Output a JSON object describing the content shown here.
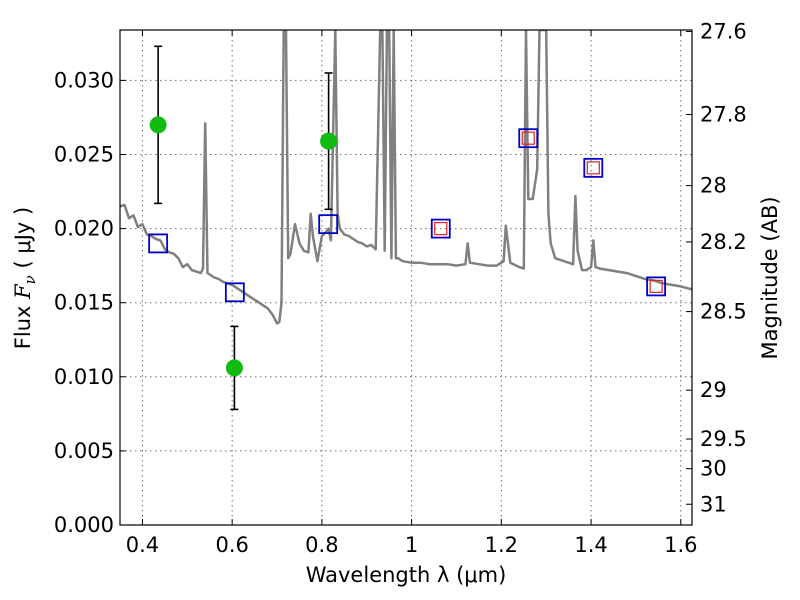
{
  "chart_data": {
    "type": "scatter",
    "xlabel": "Wavelength  λ (μm)",
    "ylabel_prefix": "Flux  ",
    "ylabel_symbol": "F",
    "ylabel_subscript": "ν",
    "ylabel_suffix": "  ( μJy )",
    "y2label": "Magnitude (AB)",
    "xlim": [
      0.35,
      1.625
    ],
    "ylim": [
      0.0,
      0.0334
    ],
    "grid": true,
    "x_ticks": [
      0.4,
      0.6,
      0.8,
      1.0,
      1.2,
      1.4,
      1.6
    ],
    "x_tick_labels": [
      "0.4",
      "0.6",
      "0.8",
      "1",
      "1.2",
      "1.4",
      "1.6"
    ],
    "y_ticks": [
      0.0,
      0.005,
      0.01,
      0.015,
      0.02,
      0.025,
      0.03
    ],
    "y_tick_labels": [
      "0.000",
      "0.005",
      "0.010",
      "0.015",
      "0.020",
      "0.025",
      "0.030"
    ],
    "y2_ticks": [
      {
        "flux": 0.0333,
        "label": "27.6"
      },
      {
        "flux": 0.0277,
        "label": "27.8"
      },
      {
        "flux": 0.0229,
        "label": "28"
      },
      {
        "flux": 0.0191,
        "label": "28.2"
      },
      {
        "flux": 0.0144,
        "label": "28.5"
      },
      {
        "flux": 0.0091,
        "label": "29"
      },
      {
        "flux": 0.0058,
        "label": "29.5"
      },
      {
        "flux": 0.0038,
        "label": "30"
      },
      {
        "flux": 0.0014,
        "label": "31"
      }
    ],
    "series": [
      {
        "kind": "line",
        "color": "#808080",
        "points": [
          [
            0.35,
            0.0215
          ],
          [
            0.36,
            0.0216
          ],
          [
            0.37,
            0.0207
          ],
          [
            0.38,
            0.0209
          ],
          [
            0.39,
            0.0201
          ],
          [
            0.4,
            0.0203
          ],
          [
            0.41,
            0.0196
          ],
          [
            0.42,
            0.0195
          ],
          [
            0.43,
            0.0193
          ],
          [
            0.44,
            0.0192
          ],
          [
            0.45,
            0.0186
          ],
          [
            0.46,
            0.0184
          ],
          [
            0.47,
            0.0183
          ],
          [
            0.48,
            0.018
          ],
          [
            0.49,
            0.0174
          ],
          [
            0.5,
            0.0176
          ],
          [
            0.51,
            0.0172
          ],
          [
            0.52,
            0.0171
          ],
          [
            0.53,
            0.017
          ],
          [
            0.535,
            0.0173
          ],
          [
            0.54,
            0.0271
          ],
          [
            0.545,
            0.017
          ],
          [
            0.55,
            0.0169
          ],
          [
            0.56,
            0.0167
          ],
          [
            0.57,
            0.0166
          ],
          [
            0.58,
            0.0164
          ],
          [
            0.59,
            0.0163
          ],
          [
            0.6,
            0.0162
          ],
          [
            0.62,
            0.0158
          ],
          [
            0.64,
            0.0154
          ],
          [
            0.66,
            0.015
          ],
          [
            0.68,
            0.0146
          ],
          [
            0.69,
            0.0142
          ],
          [
            0.7,
            0.0136
          ],
          [
            0.705,
            0.0137
          ],
          [
            0.71,
            0.015
          ],
          [
            0.715,
            0.0334
          ],
          [
            0.72,
            0.0334
          ],
          [
            0.725,
            0.018
          ],
          [
            0.73,
            0.0183
          ],
          [
            0.74,
            0.0203
          ],
          [
            0.75,
            0.019
          ],
          [
            0.76,
            0.0185
          ],
          [
            0.77,
            0.0184
          ],
          [
            0.775,
            0.021
          ],
          [
            0.78,
            0.0195
          ],
          [
            0.79,
            0.0178
          ],
          [
            0.8,
            0.0195
          ],
          [
            0.81,
            0.0198
          ],
          [
            0.815,
            0.02
          ],
          [
            0.82,
            0.0192
          ],
          [
            0.83,
            0.0334
          ],
          [
            0.835,
            0.021
          ],
          [
            0.84,
            0.02
          ],
          [
            0.85,
            0.0196
          ],
          [
            0.86,
            0.0195
          ],
          [
            0.87,
            0.0193
          ],
          [
            0.88,
            0.0191
          ],
          [
            0.89,
            0.019
          ],
          [
            0.9,
            0.0188
          ],
          [
            0.91,
            0.0189
          ],
          [
            0.92,
            0.0186
          ],
          [
            0.93,
            0.0334
          ],
          [
            0.935,
            0.0334
          ],
          [
            0.94,
            0.0185
          ],
          [
            0.945,
            0.0334
          ],
          [
            0.95,
            0.0334
          ],
          [
            0.955,
            0.018
          ],
          [
            0.96,
            0.0334
          ],
          [
            0.965,
            0.018
          ],
          [
            0.97,
            0.018
          ],
          [
            0.98,
            0.0178
          ],
          [
            1.0,
            0.0177
          ],
          [
            1.02,
            0.0177
          ],
          [
            1.04,
            0.0176
          ],
          [
            1.06,
            0.0176
          ],
          [
            1.08,
            0.0176
          ],
          [
            1.1,
            0.0175
          ],
          [
            1.12,
            0.0176
          ],
          [
            1.125,
            0.019
          ],
          [
            1.13,
            0.0177
          ],
          [
            1.15,
            0.0176
          ],
          [
            1.17,
            0.0175
          ],
          [
            1.19,
            0.0175
          ],
          [
            1.205,
            0.0178
          ],
          [
            1.21,
            0.0202
          ],
          [
            1.22,
            0.0177
          ],
          [
            1.24,
            0.0174
          ],
          [
            1.25,
            0.0173
          ],
          [
            1.255,
            0.0334
          ],
          [
            1.26,
            0.022
          ],
          [
            1.27,
            0.022
          ],
          [
            1.28,
            0.024
          ],
          [
            1.285,
            0.0334
          ],
          [
            1.29,
            0.0334
          ],
          [
            1.3,
            0.0334
          ],
          [
            1.305,
            0.021
          ],
          [
            1.31,
            0.019
          ],
          [
            1.32,
            0.018
          ],
          [
            1.34,
            0.0178
          ],
          [
            1.36,
            0.0176
          ],
          [
            1.365,
            0.0222
          ],
          [
            1.37,
            0.0185
          ],
          [
            1.38,
            0.0172
          ],
          [
            1.39,
            0.0172
          ],
          [
            1.4,
            0.0174
          ],
          [
            1.405,
            0.0192
          ],
          [
            1.41,
            0.0174
          ],
          [
            1.42,
            0.0173
          ],
          [
            1.44,
            0.0172
          ],
          [
            1.46,
            0.0171
          ],
          [
            1.48,
            0.017
          ],
          [
            1.5,
            0.0168
          ],
          [
            1.52,
            0.0166
          ],
          [
            1.54,
            0.0165
          ],
          [
            1.56,
            0.0163
          ],
          [
            1.58,
            0.0162
          ],
          [
            1.6,
            0.0161
          ],
          [
            1.625,
            0.0159
          ]
        ]
      },
      {
        "kind": "points",
        "marker": "circle",
        "color": "#11bb11",
        "points": [
          {
            "x": 0.435,
            "y": 0.027,
            "err_low": 0.0053,
            "err_high": 0.0053
          },
          {
            "x": 0.605,
            "y": 0.0106,
            "err_low": 0.0028,
            "err_high": 0.0028
          },
          {
            "x": 0.815,
            "y": 0.0259,
            "err_low": 0.0046,
            "err_high": 0.0046
          }
        ]
      },
      {
        "kind": "points",
        "marker": "square",
        "color": "#0000cc",
        "points": [
          {
            "x": 0.435,
            "y": 0.019
          },
          {
            "x": 0.606,
            "y": 0.0157
          },
          {
            "x": 0.814,
            "y": 0.0203
          },
          {
            "x": 1.065,
            "y": 0.02
          },
          {
            "x": 1.26,
            "y": 0.0261
          },
          {
            "x": 1.405,
            "y": 0.0241
          },
          {
            "x": 1.545,
            "y": 0.0161
          }
        ]
      },
      {
        "kind": "points",
        "marker": "square",
        "color": "#dd2222",
        "points": [
          {
            "x": 1.065,
            "y": 0.02
          },
          {
            "x": 1.26,
            "y": 0.0261
          },
          {
            "x": 1.405,
            "y": 0.0241
          },
          {
            "x": 1.545,
            "y": 0.0161
          }
        ]
      }
    ]
  }
}
